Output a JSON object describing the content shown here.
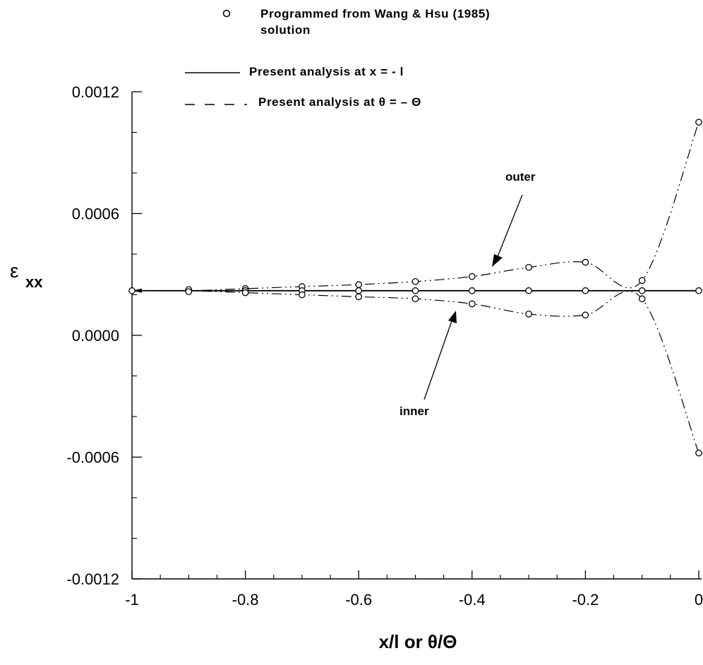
{
  "chart_data": {
    "type": "line",
    "xlabel": "x/l or θ/Θ",
    "ylabel": "ε",
    "ylabel_subscript": "xx",
    "xlim": [
      -1,
      0
    ],
    "ylim": [
      -0.0012,
      0.0012
    ],
    "xticks": [
      -1,
      -0.8,
      -0.6,
      -0.4,
      -0.2,
      0
    ],
    "xtick_labels": [
      "-1",
      "-0.8",
      "-0.6",
      "-0.4",
      "-0.2",
      "0"
    ],
    "yticks": [
      -0.0012,
      -0.0006,
      0.0,
      0.0006,
      0.0012
    ],
    "ytick_labels": [
      "-0.0012",
      "-0.0006",
      "0.0000",
      "0.0006",
      "0.0012"
    ],
    "grid": false,
    "legend": {
      "marker_label": "Programmed from Wang & Hsu (1985)",
      "marker_label_2": "solution",
      "solid_label": "Present analysis at  x = - l",
      "dashed_label": "Present analysis at  θ = – Θ"
    },
    "annotations": {
      "outer": "outer",
      "inner": "inner"
    },
    "series": [
      {
        "style": "solid",
        "x": [
          -1,
          -0.9,
          -0.8,
          -0.7,
          -0.6,
          -0.5,
          -0.4,
          -0.3,
          -0.2,
          -0.1,
          0
        ],
        "values": [
          0.00022,
          0.00022,
          0.00022,
          0.00022,
          0.00022,
          0.00022,
          0.00022,
          0.00022,
          0.00022,
          0.00022,
          0.00022
        ]
      },
      {
        "style": "dash-dot",
        "x": [
          -1,
          -0.9,
          -0.8,
          -0.7,
          -0.6,
          -0.5,
          -0.4,
          -0.3,
          -0.2,
          -0.1,
          0
        ],
        "values": [
          0.00022,
          0.00022,
          0.00023,
          0.00024,
          0.00025,
          0.000265,
          0.00029,
          0.000335,
          0.00036,
          0.00027,
          0.00105
        ]
      },
      {
        "style": "dash-dot",
        "x": [
          -1,
          -0.9,
          -0.8,
          -0.7,
          -0.6,
          -0.5,
          -0.4,
          -0.3,
          -0.2,
          -0.1,
          0
        ],
        "values": [
          0.00022,
          0.00022,
          0.00021,
          0.0002,
          0.00019,
          0.00018,
          0.000155,
          0.000105,
          0.0001,
          0.00018,
          -0.00058
        ]
      }
    ],
    "markers": {
      "x": [
        -1,
        -0.9,
        -0.9,
        -0.8,
        -0.8,
        -0.8,
        -0.7,
        -0.7,
        -0.7,
        -0.6,
        -0.6,
        -0.6,
        -0.5,
        -0.5,
        -0.5,
        -0.4,
        -0.4,
        -0.4,
        -0.3,
        -0.3,
        -0.3,
        -0.2,
        -0.2,
        -0.2,
        -0.1,
        -0.1,
        -0.1,
        0,
        0,
        0
      ],
      "values": [
        0.00022,
        0.000225,
        0.000215,
        0.00023,
        0.00022,
        0.00021,
        0.00024,
        0.00022,
        0.0002,
        0.00025,
        0.00022,
        0.00019,
        0.000265,
        0.00022,
        0.00018,
        0.00029,
        0.00022,
        0.000155,
        0.000335,
        0.00022,
        0.000105,
        0.00036,
        0.00022,
        0.0001,
        0.00027,
        0.00022,
        0.00018,
        0.00105,
        0.00022,
        -0.00058
      ]
    }
  }
}
